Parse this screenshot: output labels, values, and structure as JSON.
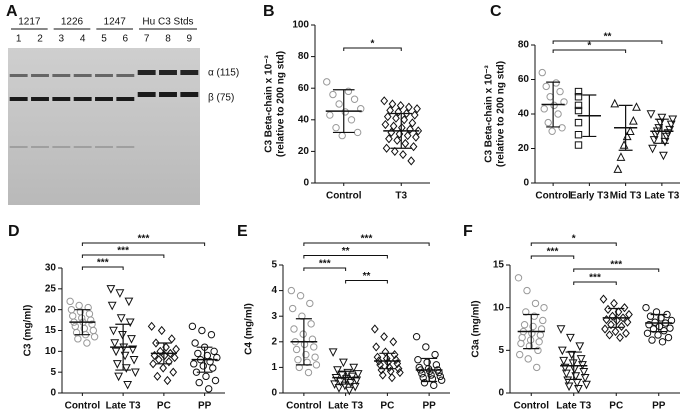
{
  "chart_data": [
    {
      "type": "gel",
      "panel": "A",
      "groups": [
        {
          "label": "1217",
          "lanes": [
            "1",
            "2"
          ]
        },
        {
          "label": "1226",
          "lanes": [
            "3",
            "4"
          ]
        },
        {
          "label": "1247",
          "lanes": [
            "5",
            "6"
          ]
        },
        {
          "label": "Hu C3 Stds",
          "lanes": [
            "7",
            "8",
            "9"
          ]
        }
      ],
      "band_labels": [
        "α (115)",
        "β (75)"
      ]
    },
    {
      "type": "dot",
      "panel": "B",
      "ylabel": [
        "C3 Beta-chain x 10⁻³",
        "(relative to 200 ng std)"
      ],
      "ylim": [
        0,
        100
      ],
      "yticks": [
        0,
        20,
        40,
        60,
        80,
        100
      ],
      "series": [
        {
          "name": "Control",
          "marker": "circle",
          "color": "#999999",
          "mean": 45.5,
          "sd": 13.5,
          "values": [
            64,
            58,
            56,
            53,
            50,
            47,
            45,
            43,
            40,
            35,
            32,
            30
          ]
        },
        {
          "name": "T3",
          "marker": "diamond",
          "color": "#111111",
          "mean": 33,
          "sd": 11,
          "values": [
            52,
            50,
            49,
            48,
            47,
            46,
            45,
            44,
            43,
            42,
            41,
            40,
            38,
            37,
            36,
            35,
            34,
            33,
            32,
            31,
            30,
            29,
            28,
            27,
            25,
            23,
            22,
            20,
            18,
            14
          ]
        }
      ],
      "brackets": [
        {
          "label": "*",
          "pair": [
            "Control",
            "T3"
          ]
        }
      ]
    },
    {
      "type": "dot",
      "panel": "C",
      "ylabel": [
        "C3 Beta-chain x 10⁻³",
        "(relative to 200 ng std)"
      ],
      "ylim": [
        0,
        80
      ],
      "yticks": [
        0,
        20,
        40,
        60,
        80
      ],
      "series": [
        {
          "name": "Control",
          "marker": "circle",
          "color": "#999999",
          "mean": 45.5,
          "sd": 13,
          "values": [
            64,
            58,
            56,
            53,
            50,
            47,
            45,
            43,
            40,
            35,
            32,
            30
          ]
        },
        {
          "name": "Early T3",
          "marker": "square",
          "color": "#111111",
          "mean": 39,
          "sd": 12,
          "values": [
            53,
            50,
            45,
            42,
            35,
            28,
            22
          ]
        },
        {
          "name": "Mid T3",
          "marker": "triangle",
          "color": "#111111",
          "mean": 32,
          "sd": 13,
          "values": [
            46,
            44,
            36,
            30,
            27,
            22,
            15,
            8
          ]
        },
        {
          "name": "Late T3",
          "marker": "triangle-down",
          "color": "#111111",
          "mean": 30,
          "sd": 7,
          "values": [
            40,
            38,
            37,
            35,
            34,
            32,
            31,
            30,
            29,
            28,
            27,
            25,
            24,
            20,
            16
          ]
        }
      ],
      "brackets": [
        {
          "label": "**",
          "pair": [
            "Control",
            "Late T3"
          ]
        },
        {
          "label": "*",
          "pair": [
            "Control",
            "Mid T3"
          ]
        }
      ]
    },
    {
      "type": "dot",
      "panel": "D",
      "ylabel": [
        "C3 (mg/ml)"
      ],
      "ylim": [
        0,
        30
      ],
      "yticks": [
        0,
        5,
        10,
        15,
        20,
        25,
        30
      ],
      "series": [
        {
          "name": "Control",
          "marker": "circle",
          "color": "#999999",
          "mean": 17,
          "sd": 3,
          "values": [
            22,
            21,
            20.5,
            20,
            19.5,
            19,
            18.5,
            18,
            17.5,
            17,
            17,
            16.5,
            16,
            15.5,
            15,
            14.5,
            14,
            13.5,
            13,
            12
          ]
        },
        {
          "name": "Late T3",
          "marker": "triangle-down",
          "color": "#111111",
          "mean": 11,
          "sd": 5.5,
          "values": [
            25,
            24,
            22,
            21,
            18,
            17,
            15,
            14,
            13,
            12,
            11,
            10.5,
            10,
            9,
            8,
            7,
            6,
            5,
            4,
            2
          ]
        },
        {
          "name": "PC",
          "marker": "diamond",
          "color": "#111111",
          "mean": 9.5,
          "sd": 2.5,
          "values": [
            16,
            15,
            13,
            12,
            11,
            10.5,
            10,
            9.5,
            9,
            9,
            8.5,
            8,
            7.5,
            7,
            6,
            5,
            4,
            3
          ]
        },
        {
          "name": "PP",
          "marker": "circle",
          "color": "#111111",
          "mean": 8,
          "sd": 3,
          "values": [
            16,
            15,
            14,
            12,
            11,
            10,
            9.5,
            9,
            8.5,
            8,
            7.5,
            7,
            6.5,
            6,
            5,
            4,
            3,
            2.5,
            1
          ]
        }
      ],
      "brackets": [
        {
          "label": "***",
          "pair": [
            "Control",
            "PP"
          ]
        },
        {
          "label": "***",
          "pair": [
            "Control",
            "PC"
          ]
        },
        {
          "label": "***",
          "pair": [
            "Control",
            "Late T3"
          ]
        }
      ]
    },
    {
      "type": "dot",
      "panel": "E",
      "ylabel": [
        "C4 (mg/ml)"
      ],
      "ylim": [
        0,
        5
      ],
      "yticks": [
        0,
        1,
        2,
        3,
        4,
        5
      ],
      "series": [
        {
          "name": "Control",
          "marker": "circle",
          "color": "#999999",
          "mean": 2.0,
          "sd": 0.9,
          "values": [
            4,
            3.8,
            3.5,
            3.3,
            3,
            2.7,
            2.5,
            2.3,
            2.1,
            2,
            1.9,
            1.8,
            1.7,
            1.5,
            1.4,
            1.3,
            1.2,
            1.1,
            1,
            0.8
          ]
        },
        {
          "name": "Late T3",
          "marker": "triangle-down",
          "color": "#111111",
          "mean": 0.6,
          "sd": 0.25,
          "values": [
            1.6,
            1.2,
            1,
            0.9,
            0.8,
            0.75,
            0.7,
            0.65,
            0.6,
            0.55,
            0.5,
            0.45,
            0.4,
            0.35,
            0.3,
            0.25,
            0.2,
            0.1
          ]
        },
        {
          "name": "PC",
          "marker": "diamond",
          "color": "#111111",
          "mean": 1.25,
          "sd": 0.3,
          "values": [
            2.5,
            2.2,
            2,
            1.8,
            1.6,
            1.5,
            1.4,
            1.35,
            1.3,
            1.25,
            1.2,
            1.15,
            1.1,
            1,
            0.95,
            0.9,
            0.85,
            0.8,
            0.7,
            0.6
          ]
        },
        {
          "name": "PP",
          "marker": "circle",
          "color": "#111111",
          "mean": 0.9,
          "sd": 0.45,
          "values": [
            2.2,
            1.8,
            1.5,
            1.3,
            1.2,
            1.1,
            1,
            0.95,
            0.9,
            0.9,
            0.85,
            0.8,
            0.75,
            0.7,
            0.65,
            0.6,
            0.55,
            0.5,
            0.4,
            0.3
          ]
        }
      ],
      "brackets": [
        {
          "label": "***",
          "pair": [
            "Control",
            "PP"
          ]
        },
        {
          "label": "**",
          "pair": [
            "Control",
            "PC"
          ]
        },
        {
          "label": "***",
          "pair": [
            "Control",
            "Late T3"
          ]
        },
        {
          "label": "**",
          "pair": [
            "Late T3",
            "PC"
          ]
        }
      ]
    },
    {
      "type": "dot",
      "panel": "F",
      "ylabel": [
        "C3a (mg/ml)"
      ],
      "ylim": [
        0,
        15
      ],
      "yticks": [
        0,
        5,
        10,
        15
      ],
      "series": [
        {
          "name": "Control",
          "marker": "circle",
          "color": "#999999",
          "mean": 7.2,
          "sd": 2,
          "values": [
            13.5,
            12,
            10.5,
            10,
            9.5,
            9,
            8.5,
            8,
            7.8,
            7.5,
            7.2,
            7,
            6.8,
            6.5,
            6.2,
            6,
            5.8,
            5.5,
            5,
            4.5,
            4,
            3
          ]
        },
        {
          "name": "Late T3",
          "marker": "triangle-down",
          "color": "#111111",
          "mean": 3.2,
          "sd": 1.6,
          "values": [
            7.5,
            6.5,
            5.5,
            5,
            4.5,
            4,
            3.8,
            3.5,
            3.3,
            3,
            2.8,
            2.5,
            2.3,
            2,
            1.8,
            1.5,
            1.2,
            1,
            0.8,
            0.5
          ]
        },
        {
          "name": "PC",
          "marker": "diamond",
          "color": "#111111",
          "mean": 8.8,
          "sd": 1.1,
          "values": [
            11,
            10.5,
            10,
            9.8,
            9.5,
            9.2,
            9,
            8.8,
            8.6,
            8.5,
            8.3,
            8,
            7.8,
            7.5,
            7.2,
            7,
            6.8,
            6.5
          ]
        },
        {
          "name": "PP",
          "marker": "circle",
          "color": "#111111",
          "mean": 8.2,
          "sd": 1,
          "values": [
            10,
            9.5,
            9.2,
            9,
            8.8,
            8.5,
            8.3,
            8.2,
            8,
            7.8,
            7.6,
            7.5,
            7.3,
            7,
            6.8,
            6.5,
            6.2,
            6
          ]
        }
      ],
      "brackets": [
        {
          "label": "*",
          "pair": [
            "Control",
            "PC"
          ]
        },
        {
          "label": "***",
          "pair": [
            "Control",
            "Late T3"
          ]
        },
        {
          "label": "***",
          "pair": [
            "Late T3",
            "PP"
          ]
        },
        {
          "label": "***",
          "pair": [
            "Late T3",
            "PC"
          ]
        }
      ]
    }
  ]
}
